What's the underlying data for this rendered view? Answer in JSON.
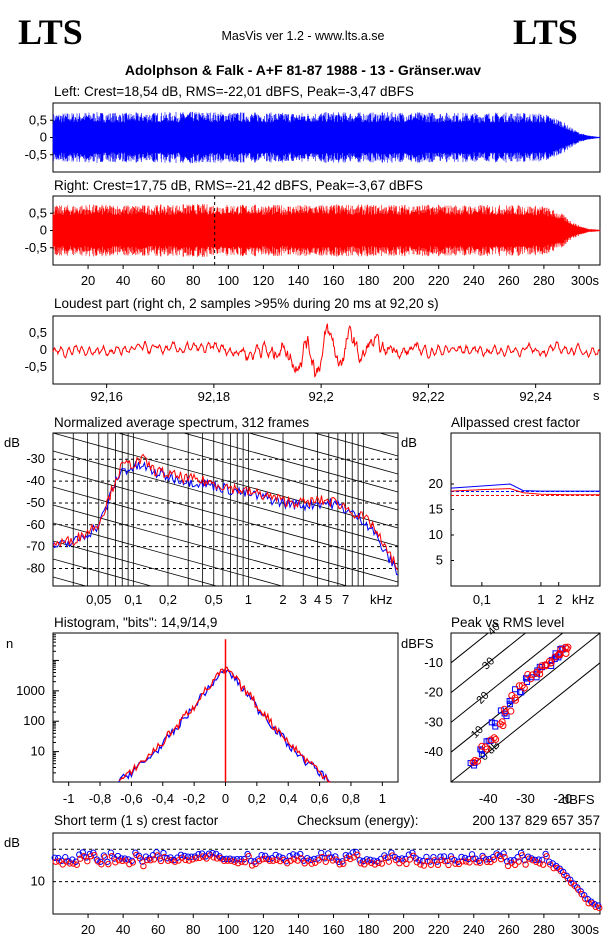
{
  "header": {
    "logo_left": "LTS",
    "logo_right": "LTS",
    "app": "MasVis ver 1.2 - www.lts.a.se",
    "file": "Adolphson & Falk - A+F 81-87 1988 - 13 - Gränser.wav"
  },
  "colors": {
    "left": "#0000ff",
    "right": "#ff0000",
    "axis": "#000000"
  },
  "chart_data": [
    {
      "id": "left",
      "type": "line",
      "title": "Left: Crest=18,54 dB, RMS=-22,01 dBFS, Peak=-3,47 dBFS",
      "ylim": [
        -1,
        1
      ],
      "ytick_labels": [
        "0,5",
        "0",
        "-0,5"
      ],
      "ytick_values": [
        0.5,
        0,
        -0.5
      ],
      "xlim": [
        0,
        312
      ],
      "envelope": {
        "x": [
          0,
          20,
          40,
          60,
          80,
          100,
          120,
          140,
          160,
          180,
          200,
          220,
          240,
          260,
          280,
          290,
          295,
          300,
          305,
          312
        ],
        "amp": [
          0.7,
          0.74,
          0.72,
          0.73,
          0.75,
          0.74,
          0.73,
          0.72,
          0.74,
          0.73,
          0.74,
          0.73,
          0.72,
          0.73,
          0.7,
          0.5,
          0.3,
          0.15,
          0.06,
          0.02
        ]
      }
    },
    {
      "id": "right",
      "type": "line",
      "title": "Right: Crest=17,75 dB, RMS=-21,42 dBFS, Peak=-3,67 dBFS",
      "ylim": [
        -1,
        1
      ],
      "ytick_labels": [
        "0,5",
        "0",
        "-0,5"
      ],
      "ytick_values": [
        0.5,
        0,
        -0.5
      ],
      "xlim": [
        0,
        312
      ],
      "xtick_values": [
        20,
        40,
        60,
        80,
        100,
        120,
        140,
        160,
        180,
        200,
        220,
        240,
        260,
        280
      ],
      "xtick_labels": [
        "20",
        "40",
        "60",
        "80",
        "100",
        "120",
        "140",
        "160",
        "180",
        "200",
        "220",
        "240",
        "260",
        "280"
      ],
      "x_last_label": "300s",
      "x_last_value": 300,
      "marker_x": 92.2,
      "envelope": {
        "x": [
          0,
          20,
          40,
          60,
          80,
          100,
          120,
          140,
          160,
          180,
          200,
          220,
          240,
          260,
          280,
          290,
          295,
          300,
          305,
          312
        ],
        "amp": [
          0.72,
          0.76,
          0.74,
          0.75,
          0.77,
          0.76,
          0.75,
          0.74,
          0.76,
          0.75,
          0.76,
          0.75,
          0.74,
          0.75,
          0.72,
          0.5,
          0.3,
          0.15,
          0.06,
          0.02
        ]
      }
    },
    {
      "id": "loudest",
      "type": "line",
      "title": "Loudest part (right ch, 2 samples >95% during 20 ms at 92,20 s)",
      "ylim": [
        -1,
        1
      ],
      "ytick_labels": [
        "0,5",
        "0",
        "-0,5"
      ],
      "ytick_values": [
        0.5,
        0,
        -0.5
      ],
      "xlim": [
        92.15,
        92.252
      ],
      "xtick_values": [
        92.16,
        92.18,
        92.2,
        92.22,
        92.24
      ],
      "xtick_labels": [
        "92,16",
        "92,18",
        "92,2",
        "92,22",
        "92,24"
      ],
      "x_unit": "s"
    },
    {
      "id": "spectrum",
      "type": "line",
      "title": "Normalized average spectrum, 312 frames",
      "ylabel": "dB",
      "ytick_labels": [
        "-30",
        "-40",
        "-50",
        "-60",
        "-70",
        "-80"
      ],
      "ytick_values": [
        -30,
        -40,
        -50,
        -60,
        -70,
        -80
      ],
      "ylim": [
        -88,
        -18
      ],
      "xlim": [
        0.02,
        20
      ],
      "x_scale": "log",
      "xtick_values": [
        0.05,
        0.1,
        0.2,
        0.5,
        1,
        2,
        3,
        4,
        5,
        7
      ],
      "xtick_labels": [
        "0,05",
        "0,1",
        "0,2",
        "0,5",
        "1",
        "2",
        "3",
        "4",
        "5",
        "7"
      ],
      "x_unit": "kHz",
      "x": [
        0.02,
        0.03,
        0.04,
        0.05,
        0.06,
        0.07,
        0.08,
        0.1,
        0.12,
        0.15,
        0.2,
        0.3,
        0.5,
        0.7,
        1,
        1.5,
        2,
        3,
        4,
        5,
        6,
        7,
        8,
        10,
        12,
        15,
        20
      ],
      "series": [
        {
          "color": "#0000ff",
          "values": [
            -70,
            -68,
            -64,
            -60,
            -50,
            -40,
            -35,
            -34,
            -33,
            -36,
            -38,
            -40,
            -42,
            -44,
            -46,
            -48,
            -50,
            -51,
            -50,
            -50,
            -51,
            -53,
            -55,
            -58,
            -62,
            -72,
            -82
          ]
        },
        {
          "color": "#ff0000",
          "values": [
            -69,
            -67,
            -63,
            -59,
            -49,
            -39,
            -33,
            -32,
            -30,
            -35,
            -37,
            -39,
            -41,
            -43,
            -45,
            -47,
            -49,
            -50,
            -49,
            -49,
            -50,
            -52,
            -54,
            -57,
            -60,
            -70,
            -80
          ]
        }
      ]
    },
    {
      "id": "allpass",
      "type": "line",
      "title": "Allpassed crest factor",
      "ylabel": "dB",
      "ytick_labels": [
        "20",
        "15",
        "10",
        "5"
      ],
      "ytick_values": [
        20,
        15,
        10,
        5
      ],
      "ylim": [
        0,
        30
      ],
      "xlim": [
        0.03,
        10
      ],
      "x_scale": "log",
      "xtick_values": [
        0.1,
        1,
        2
      ],
      "xtick_labels": [
        "0,1",
        "1",
        "2"
      ],
      "x_unit": "kHz",
      "x": [
        0.03,
        0.1,
        0.3,
        0.5,
        1,
        3,
        10
      ],
      "series": [
        {
          "color": "#0000ff",
          "values": [
            19.2,
            19.6,
            20,
            18.7,
            18.6,
            18.6,
            18.6
          ]
        },
        {
          "color": "#ff0000",
          "values": [
            18.6,
            18.9,
            19.1,
            18.3,
            18.0,
            17.9,
            17.9
          ]
        }
      ],
      "reference_lines": [
        {
          "color": "#0000ff",
          "value": 18.54
        },
        {
          "color": "#ff0000",
          "value": 17.75
        }
      ]
    },
    {
      "id": "histogram",
      "type": "line",
      "title": "Histogram, \"bits\": 14,9/14,9",
      "ylabel": "n",
      "y_scale": "log",
      "ytick_labels": [
        "1000",
        "100",
        "10"
      ],
      "ytick_values": [
        1000,
        100,
        10
      ],
      "ylim": [
        1,
        80000
      ],
      "xlim": [
        -1.1,
        1.1
      ],
      "xtick_values": [
        -1,
        -0.8,
        -0.6,
        -0.4,
        -0.2,
        0,
        0.2,
        0.4,
        0.6,
        0.8,
        1
      ],
      "xtick_labels": [
        "-1",
        "-0,8",
        "-0,6",
        "-0,4",
        "-0,2",
        "0",
        "0,2",
        "0,4",
        "0,6",
        "0,8",
        "1"
      ],
      "x": [
        -0.68,
        -0.6,
        -0.5,
        -0.4,
        -0.3,
        -0.2,
        -0.1,
        0,
        0.1,
        0.2,
        0.3,
        0.4,
        0.5,
        0.6,
        0.68
      ],
      "series": [
        {
          "color": "#0000ff",
          "values": [
            1,
            2,
            5,
            15,
            60,
            250,
            1200,
            4500,
            1200,
            250,
            60,
            15,
            5,
            2,
            1
          ]
        },
        {
          "color": "#ff0000",
          "values": [
            1,
            2,
            6,
            18,
            70,
            280,
            1300,
            5000,
            1300,
            280,
            70,
            18,
            6,
            2,
            1
          ]
        }
      ],
      "spike_x": 0,
      "spike_value": 50000
    },
    {
      "id": "peak_rms",
      "type": "scatter",
      "title": "Peak vs RMS level",
      "ylabel": "dBFS",
      "xlabel": "dBFS",
      "ytick_labels": [
        "-10",
        "-20",
        "-30",
        "-40"
      ],
      "ytick_values": [
        -10,
        -20,
        -30,
        -40
      ],
      "xtick_values": [
        -40,
        -30,
        -20
      ],
      "xtick_labels": [
        "-40",
        "-30",
        "-20"
      ],
      "xlim": [
        -50,
        -10
      ],
      "ylim": [
        -50,
        0
      ],
      "diagonal_labels": [
        "40",
        "30",
        "20",
        "10",
        "0 dB"
      ],
      "diagonal_offsets": [
        40,
        30,
        20,
        10,
        0
      ],
      "series": [
        {
          "color": "#0000ff",
          "x": [
            -44,
            -42,
            -40,
            -38,
            -36,
            -34,
            -32,
            -30,
            -28,
            -26,
            -24,
            -22,
            -21,
            -20
          ],
          "y": [
            -44,
            -40,
            -36,
            -31,
            -27,
            -23,
            -19,
            -16,
            -14,
            -12,
            -10,
            -8,
            -7,
            -6
          ]
        },
        {
          "color": "#ff0000",
          "x": [
            -43,
            -41,
            -39,
            -37,
            -35,
            -33,
            -31,
            -29,
            -27,
            -25,
            -23,
            -21,
            -20,
            -19
          ],
          "y": [
            -43,
            -39,
            -35,
            -30,
            -26,
            -22,
            -18,
            -15,
            -13,
            -11,
            -9,
            -7,
            -6,
            -5
          ]
        }
      ]
    },
    {
      "id": "shortterm",
      "type": "scatter",
      "title": "Short term (1 s) crest factor",
      "checksum_label": "Checksum (energy):",
      "checksum_value": "200 137 829 657 357",
      "ylabel": "dB",
      "ytick_labels": [
        "10"
      ],
      "ytick_values": [
        10
      ],
      "ylim": [
        0,
        25
      ],
      "xlim": [
        0,
        312
      ],
      "xtick_values": [
        20,
        40,
        60,
        80,
        100,
        120,
        140,
        160,
        180,
        200,
        220,
        240,
        260,
        280
      ],
      "xtick_labels": [
        "20",
        "40",
        "60",
        "80",
        "100",
        "120",
        "140",
        "160",
        "180",
        "200",
        "220",
        "240",
        "260",
        "280"
      ],
      "x_last_label": "300s",
      "x_last_value": 300,
      "dashed_levels": [
        20,
        10
      ],
      "base_level": 17,
      "tail": {
        "x": [
          285,
          290,
          295,
          300,
          305,
          310
        ],
        "y": [
          15,
          13,
          10,
          7,
          4,
          2
        ]
      }
    }
  ]
}
